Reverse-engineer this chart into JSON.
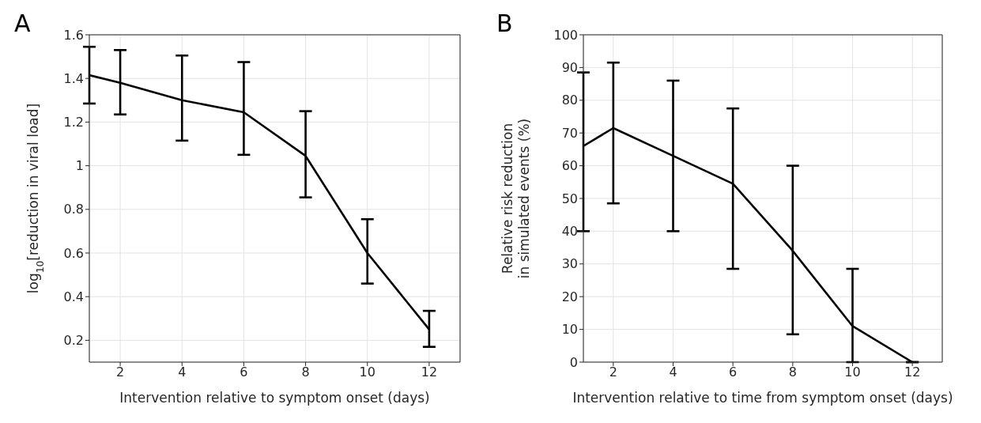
{
  "chart_data": [
    {
      "type": "line",
      "annotations": [
        "A"
      ],
      "xlabel": "Intervention relative to symptom onset (days)",
      "ylabel": "log$_{10}$[reduction in viral load]",
      "x": [
        1,
        2,
        4,
        6,
        8,
        10,
        12
      ],
      "series": [
        {
          "color": "#000000",
          "values": [
            1.415,
            1.38,
            1.3,
            1.245,
            1.045,
            0.6,
            0.25
          ],
          "errors": [
            [
              1.285,
              1.545
            ],
            [
              1.235,
              1.53
            ],
            [
              1.115,
              1.505
            ],
            [
              1.05,
              1.475
            ],
            [
              0.855,
              1.25
            ],
            [
              0.46,
              0.755
            ],
            [
              0.17,
              0.335
            ]
          ]
        }
      ],
      "xlim": [
        1,
        13
      ],
      "xticks": [
        2,
        4,
        6,
        8,
        10,
        12
      ],
      "ylim": [
        0.1,
        1.6
      ],
      "yticks": [
        0.2,
        0.4,
        0.6,
        0.8,
        1,
        1.2,
        1.4,
        1.6
      ],
      "grid": true,
      "legend": false,
      "marker": "none",
      "line_style": "solid"
    },
    {
      "type": "line",
      "annotations": [
        "B"
      ],
      "xlabel": "Intervention relative to time from symptom onset (days)",
      "ylabel": "Relative risk reduction\nin simulated events (%)",
      "x": [
        1,
        2,
        4,
        6,
        8,
        10,
        12
      ],
      "series": [
        {
          "color": "#000000",
          "values": [
            66,
            71.5,
            63,
            54.5,
            34,
            11,
            0
          ],
          "errors": [
            [
              40,
              88.5
            ],
            [
              48.5,
              91.5
            ],
            [
              40,
              86
            ],
            [
              28.5,
              77.5
            ],
            [
              8.5,
              60
            ],
            [
              0,
              28.5
            ],
            [
              0,
              0
            ]
          ]
        }
      ],
      "xlim": [
        1,
        13
      ],
      "xticks": [
        2,
        4,
        6,
        8,
        10,
        12
      ],
      "ylim": [
        0,
        100
      ],
      "yticks": [
        0,
        10,
        20,
        30,
        40,
        50,
        60,
        70,
        80,
        90,
        100
      ],
      "grid": true,
      "legend": false,
      "marker": "none",
      "line_style": "solid"
    }
  ]
}
